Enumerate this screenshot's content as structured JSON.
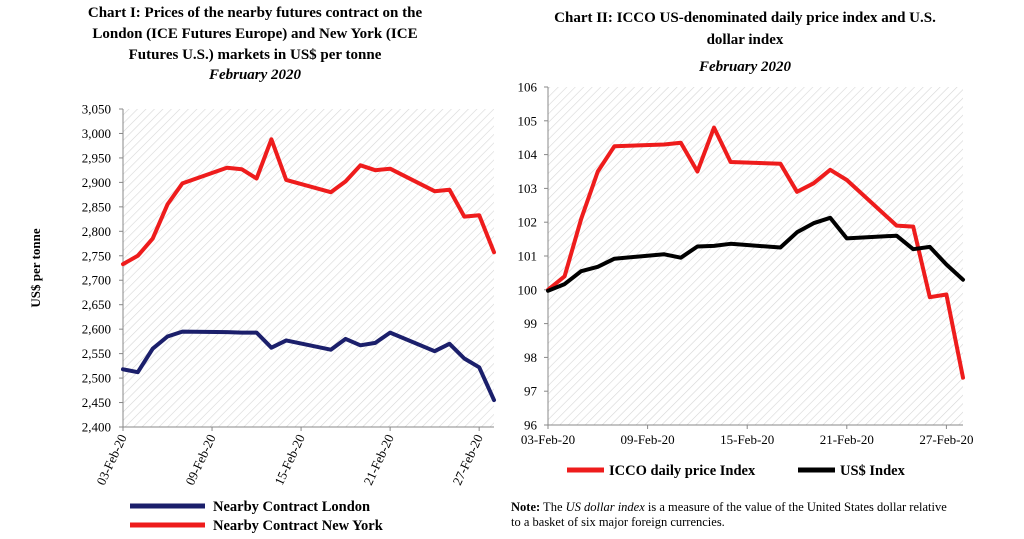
{
  "chart_data": [
    {
      "type": "line",
      "title_lines": [
        "Chart I: Prices of the nearby futures contract on the",
        "London (ICE Futures Europe) and New York (ICE",
        "Futures U.S.) markets in US$ per tonne"
      ],
      "subtitle": "February 2020",
      "ylabel": "US$ per tonne",
      "xlabel": "",
      "ylim": [
        2400,
        3050
      ],
      "yticks": [
        "2,400",
        "2,450",
        "2,500",
        "2,550",
        "2,600",
        "2,650",
        "2,700",
        "2,750",
        "2,800",
        "2,850",
        "2,900",
        "2,950",
        "3,000",
        "3,050"
      ],
      "xtick_labels": [
        "03-Feb-20",
        "09-Feb-20",
        "15-Feb-20",
        "21-Feb-20",
        "27-Feb-20"
      ],
      "x": [
        "03-Feb-20",
        "04-Feb-20",
        "05-Feb-20",
        "06-Feb-20",
        "07-Feb-20",
        "10-Feb-20",
        "11-Feb-20",
        "12-Feb-20",
        "13-Feb-20",
        "14-Feb-20",
        "17-Feb-20",
        "18-Feb-20",
        "19-Feb-20",
        "20-Feb-20",
        "21-Feb-20",
        "24-Feb-20",
        "25-Feb-20",
        "26-Feb-20",
        "27-Feb-20",
        "28-Feb-20"
      ],
      "series": [
        {
          "name": "Nearby Contract London",
          "color": "#1b1f6b",
          "values": [
            2518,
            2512,
            2560,
            2585,
            2595,
            2594,
            2593,
            2593,
            2562,
            2577,
            2558,
            2580,
            2567,
            2572,
            2593,
            2555,
            2570,
            2540,
            2522,
            2455
          ]
        },
        {
          "name": "Nearby Contract New York",
          "color": "#ee1c1c",
          "values": [
            2733,
            2750,
            2785,
            2855,
            2898,
            2930,
            2927,
            2908,
            2988,
            2905,
            2880,
            2902,
            2935,
            2925,
            2928,
            2882,
            2885,
            2830,
            2833,
            2757
          ]
        }
      ],
      "legend": "bottom",
      "background": "diagonal hatch"
    },
    {
      "type": "line",
      "title_lines": [
        "Chart II: ICCO US-denominated daily price index and U.S.",
        "dollar index"
      ],
      "subtitle": "February 2020",
      "ylabel": "",
      "xlabel": "",
      "ylim": [
        96,
        106
      ],
      "yticks": [
        "96",
        "97",
        "98",
        "99",
        "100",
        "101",
        "102",
        "103",
        "104",
        "105",
        "106"
      ],
      "xtick_labels": [
        "03-Feb-20",
        "09-Feb-20",
        "15-Feb-20",
        "21-Feb-20",
        "27-Feb-20"
      ],
      "x": [
        "03-Feb-20",
        "04-Feb-20",
        "05-Feb-20",
        "06-Feb-20",
        "07-Feb-20",
        "10-Feb-20",
        "11-Feb-20",
        "12-Feb-20",
        "13-Feb-20",
        "14-Feb-20",
        "17-Feb-20",
        "18-Feb-20",
        "19-Feb-20",
        "20-Feb-20",
        "21-Feb-20",
        "24-Feb-20",
        "25-Feb-20",
        "26-Feb-20",
        "27-Feb-20",
        "28-Feb-20"
      ],
      "series": [
        {
          "name": "ICCO daily price Index",
          "color": "#ee1c1c",
          "values": [
            100.0,
            100.4,
            102.1,
            103.5,
            104.25,
            104.3,
            104.35,
            103.5,
            104.8,
            103.78,
            103.73,
            102.9,
            103.15,
            103.55,
            103.25,
            101.9,
            101.87,
            99.78,
            99.86,
            97.4
          ]
        },
        {
          "name": "US$ Index",
          "color": "#000000",
          "values": [
            99.97,
            100.17,
            100.55,
            100.68,
            100.92,
            101.05,
            100.95,
            101.28,
            101.3,
            101.36,
            101.25,
            101.7,
            101.97,
            102.13,
            101.52,
            101.6,
            101.2,
            101.27,
            100.75,
            100.3
          ]
        }
      ],
      "legend": "bottom",
      "background": "diagonal hatch"
    }
  ],
  "note": {
    "label": "Note:",
    "before": " The ",
    "emph": "US dollar index",
    "after": " is a measure of the value of the United States dollar relative to a basket of six major foreign currencies."
  }
}
